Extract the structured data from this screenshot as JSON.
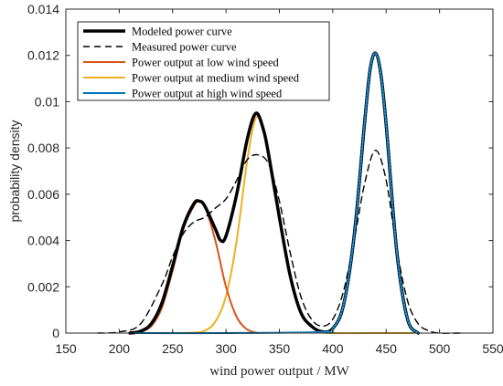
{
  "chart_data": {
    "type": "line",
    "xlabel": "wind power output / MW",
    "ylabel": "probability density",
    "xlim": [
      150,
      550
    ],
    "ylim": [
      0,
      0.014
    ],
    "xticks": [
      "150",
      "200",
      "250",
      "300",
      "350",
      "400",
      "450",
      "500",
      "550"
    ],
    "yticks": [
      "0",
      "0.002",
      "0.004",
      "0.006",
      "0.008",
      "0.01",
      "0.012",
      "0.014"
    ],
    "grid": false,
    "legend_position": "top-left",
    "series": [
      {
        "name": "Modeled power curve",
        "color": "#000000",
        "style": "solid-bold",
        "x": [
          210,
          220,
          230,
          240,
          250,
          260,
          270,
          275,
          280,
          290,
          295,
          300,
          310,
          320,
          328,
          335,
          340,
          350,
          360,
          370,
          380,
          390,
          400,
          410,
          420,
          430,
          435,
          440,
          445,
          450,
          460,
          470,
          480
        ],
        "y": [
          0,
          8e-05,
          0.0004,
          0.0013,
          0.0029,
          0.0046,
          0.0056,
          0.0057,
          0.0055,
          0.0045,
          0.004,
          0.0042,
          0.006,
          0.0084,
          0.0095,
          0.0088,
          0.0077,
          0.005,
          0.0025,
          0.0009,
          0.0003,
          6e-05,
          0.0002,
          0.0012,
          0.0042,
          0.0092,
          0.0114,
          0.0121,
          0.0112,
          0.009,
          0.0035,
          0.0006,
          0
        ]
      },
      {
        "name": "Measured power curve",
        "color": "#000000",
        "style": "dashed",
        "x": [
          180,
          200,
          220,
          240,
          250,
          260,
          270,
          280,
          290,
          300,
          310,
          320,
          330,
          340,
          350,
          360,
          370,
          380,
          390,
          400,
          410,
          420,
          430,
          440,
          450,
          460,
          470,
          480,
          490,
          500,
          520
        ],
        "y": [
          0,
          5e-05,
          0.0004,
          0.0021,
          0.0033,
          0.0043,
          0.0048,
          0.005,
          0.0054,
          0.0058,
          0.0066,
          0.0075,
          0.0077,
          0.0073,
          0.0057,
          0.0035,
          0.0016,
          0.0006,
          0.0003,
          0.0006,
          0.0018,
          0.004,
          0.0065,
          0.0079,
          0.0066,
          0.0036,
          0.0014,
          0.0004,
          0.0001,
          0,
          0
        ]
      },
      {
        "name": "Power output at low wind speed",
        "color": "#D95319",
        "style": "solid",
        "x": [
          220,
          230,
          240,
          250,
          260,
          270,
          275,
          280,
          290,
          300,
          310,
          320,
          330
        ],
        "y": [
          5e-05,
          0.0003,
          0.0011,
          0.0027,
          0.0045,
          0.0055,
          0.0057,
          0.0055,
          0.004,
          0.002,
          0.0007,
          0.00015,
          0
        ]
      },
      {
        "name": "Power output at medium wind speed",
        "color": "#EDB120",
        "style": "solid",
        "x": [
          215,
          250,
          270,
          280,
          290,
          300,
          310,
          320,
          328,
          335,
          340,
          350,
          360,
          370,
          380,
          390,
          400,
          450,
          475
        ],
        "y": [
          0,
          0,
          2e-05,
          0.0001,
          0.0005,
          0.0016,
          0.004,
          0.0075,
          0.0093,
          0.0088,
          0.0077,
          0.005,
          0.0025,
          0.0009,
          0.0003,
          5e-05,
          0,
          0,
          0
        ]
      },
      {
        "name": "Power output at high wind speed",
        "color": "#0072BD",
        "style": "solid",
        "x": [
          215,
          300,
          390,
          400,
          410,
          420,
          430,
          435,
          440,
          445,
          450,
          460,
          470,
          480
        ],
        "y": [
          0,
          0,
          5e-05,
          0.0002,
          0.0012,
          0.0042,
          0.0092,
          0.0114,
          0.0121,
          0.0112,
          0.009,
          0.0035,
          0.0006,
          0
        ]
      }
    ]
  }
}
